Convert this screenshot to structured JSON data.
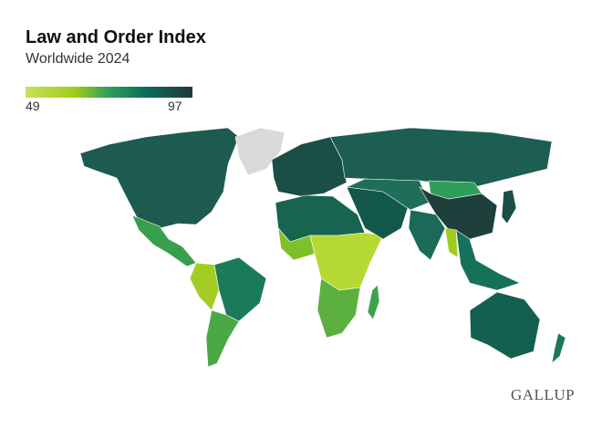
{
  "header": {
    "title": "Law and Order Index",
    "subtitle": "Worldwide 2024"
  },
  "legend": {
    "min": "49",
    "max": "97",
    "colors": [
      "#c8e05a",
      "#9fcb1b",
      "#2f9e59",
      "#0d6c5d",
      "#1e3a39"
    ],
    "no_data_color": "#d9d9d9"
  },
  "map": {
    "projection": "world",
    "regions": [
      {
        "name": "north-america",
        "color": "#1d5a4f"
      },
      {
        "name": "greenland",
        "color": "#d9d9d9"
      },
      {
        "name": "mexico-central-america",
        "color": "#3a9f4d"
      },
      {
        "name": "south-america-east",
        "color": "#1b7a5c"
      },
      {
        "name": "south-america-west",
        "color": "#a3cd22"
      },
      {
        "name": "south-america-south",
        "color": "#4aa846"
      },
      {
        "name": "europe",
        "color": "#1a4f47"
      },
      {
        "name": "russia",
        "color": "#1d5e52"
      },
      {
        "name": "north-africa",
        "color": "#17654f"
      },
      {
        "name": "west-africa",
        "color": "#7fbf2a"
      },
      {
        "name": "central-africa",
        "color": "#b6d833"
      },
      {
        "name": "southern-africa",
        "color": "#5cb03f"
      },
      {
        "name": "middle-east",
        "color": "#14584b"
      },
      {
        "name": "central-asia",
        "color": "#1f6e59"
      },
      {
        "name": "india",
        "color": "#1a6a57"
      },
      {
        "name": "china",
        "color": "#1e3f3b"
      },
      {
        "name": "mongolia",
        "color": "#2f9e59"
      },
      {
        "name": "southeast-asia",
        "color": "#16705a"
      },
      {
        "name": "myanmar",
        "color": "#9fcb1b"
      },
      {
        "name": "japan",
        "color": "#1b4f46"
      },
      {
        "name": "australia",
        "color": "#14604f"
      },
      {
        "name": "new-zealand",
        "color": "#1b7a5c"
      },
      {
        "name": "madagascar",
        "color": "#3da24b"
      }
    ]
  },
  "brand": {
    "logo": "GALLUP"
  }
}
